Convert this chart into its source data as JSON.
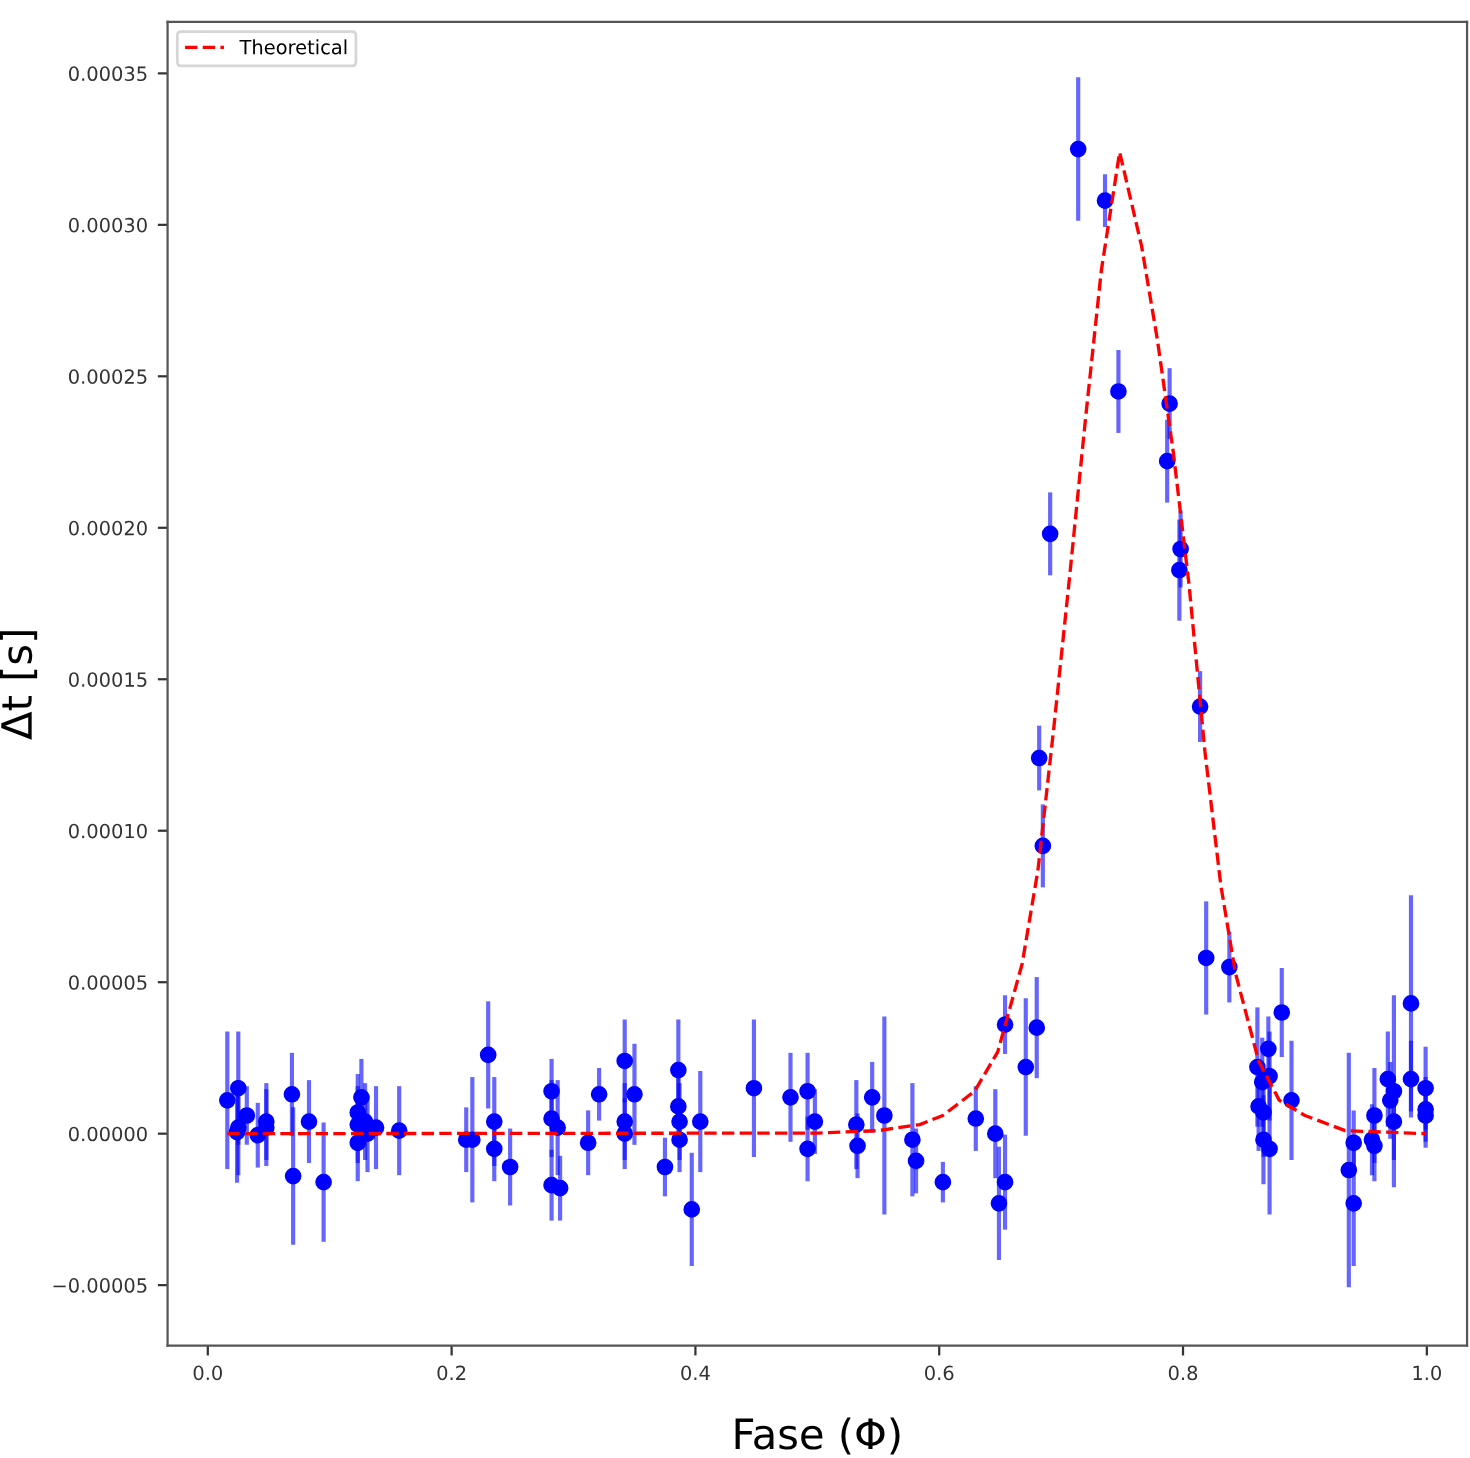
{
  "chart_data": {
    "type": "scatter",
    "xlabel": "Fase (Φ)",
    "ylabel": "Δt [s]",
    "xlim": [
      -0.033,
      1.033
    ],
    "ylim": [
      -7e-05,
      0.000367
    ],
    "xticks": [
      {
        "value": 0.0,
        "label": "0.0"
      },
      {
        "value": 0.2,
        "label": "0.2"
      },
      {
        "value": 0.4,
        "label": "0.4"
      },
      {
        "value": 0.6,
        "label": "0.6"
      },
      {
        "value": 0.8,
        "label": "0.8"
      },
      {
        "value": 1.0,
        "label": "1.0"
      }
    ],
    "yticks": [
      {
        "value": -5e-05,
        "label": "−0.00005"
      },
      {
        "value": 0,
        "label": "0.00000"
      },
      {
        "value": 5e-05,
        "label": "0.00005"
      },
      {
        "value": 0.0001,
        "label": "0.00010"
      },
      {
        "value": 0.00015,
        "label": "0.00015"
      },
      {
        "value": 0.0002,
        "label": "0.00020"
      },
      {
        "value": 0.00025,
        "label": "0.00025"
      },
      {
        "value": 0.0003,
        "label": "0.00030"
      },
      {
        "value": 0.00035,
        "label": "0.00035"
      }
    ],
    "legend": "top left",
    "series": [
      {
        "color": "#0000ff",
        "marker": "circle",
        "x": [
          0.016,
          0.024,
          0.025,
          0.025,
          0.032,
          0.041,
          0.048,
          0.048,
          0.069,
          0.07,
          0.083,
          0.095,
          0.123,
          0.123,
          0.123,
          0.126,
          0.129,
          0.131,
          0.138,
          0.157,
          0.212,
          0.217,
          0.23,
          0.235,
          0.235,
          0.248,
          0.282,
          0.282,
          0.282,
          0.287,
          0.289,
          0.312,
          0.321,
          0.342,
          0.342,
          0.342,
          0.35,
          0.375,
          0.386,
          0.386,
          0.387,
          0.387,
          0.397,
          0.404,
          0.448,
          0.478,
          0.492,
          0.492,
          0.498,
          0.532,
          0.533,
          0.545,
          0.555,
          0.578,
          0.581,
          0.603,
          0.63,
          0.646,
          0.649,
          0.654,
          0.654,
          0.671,
          0.68,
          0.682,
          0.685,
          0.691,
          0.714,
          0.736,
          0.747,
          0.787,
          0.789,
          0.797,
          0.798,
          0.814,
          0.819,
          0.838,
          0.861,
          0.862,
          0.865,
          0.866,
          0.866,
          0.87,
          0.871,
          0.871,
          0.881,
          0.889,
          0.936,
          0.94,
          0.94,
          0.955,
          0.957,
          0.957,
          0.968,
          0.97,
          0.973,
          0.973,
          0.987,
          0.987,
          0.999,
          0.999,
          0.999
        ],
        "values": [
          1.1e-05,
          5e-07,
          1.5e-05,
          2e-06,
          6e-06,
          -5e-07,
          4e-06,
          2e-06,
          1.3e-05,
          -1.4e-05,
          4e-06,
          -1.6e-05,
          7e-06,
          3e-06,
          -3e-06,
          1.2e-05,
          4e-06,
          0.0,
          2e-06,
          1e-06,
          -2e-06,
          -2e-06,
          2.6e-05,
          4e-06,
          -5e-06,
          -1.1e-05,
          1.4e-05,
          5e-06,
          -1.7e-05,
          2e-06,
          -1.8e-05,
          -3e-06,
          1.3e-05,
          2.4e-05,
          4e-06,
          0.0,
          1.3e-05,
          -1.1e-05,
          2.1e-05,
          9e-06,
          4e-06,
          -2e-06,
          -2.5e-05,
          4e-06,
          1.5e-05,
          1.2e-05,
          1.4e-05,
          -5e-06,
          4e-06,
          3e-06,
          -4e-06,
          1.2e-05,
          6e-06,
          -2e-06,
          -9e-06,
          -1.6e-05,
          5e-06,
          0.0,
          -2.3e-05,
          -1.6e-05,
          3.6e-05,
          2.2e-05,
          3.5e-05,
          0.000124,
          9.5e-05,
          0.000198,
          0.000325,
          0.000308,
          0.000245,
          0.000222,
          0.000241,
          0.000186,
          0.000193,
          0.000141,
          5.8e-05,
          5.5e-05,
          2.2e-05,
          9e-06,
          1.7e-05,
          7e-06,
          -2e-06,
          2.8e-05,
          1.9e-05,
          -5e-06,
          4e-05,
          1.1e-05,
          -1.2e-05,
          -2.3e-05,
          -3e-06,
          -2e-06,
          6e-06,
          -4e-06,
          1.8e-05,
          1.1e-05,
          1.4e-05,
          4e-06,
          4.3e-05,
          1.8e-05,
          1.5e-05,
          8e-06,
          6e-06
        ],
        "errors": [
          2.2e-05,
          1.6e-05,
          1.8e-05,
          1.5e-05,
          9e-06,
          1e-05,
          1.2e-05,
          1.2e-05,
          1.3e-05,
          2.2e-05,
          1.3e-05,
          1.9e-05,
          1.2e-05,
          1.2e-05,
          1.2e-05,
          1.2e-05,
          1.2e-05,
          1.2e-05,
          1.3e-05,
          1.4e-05,
          1e-05,
          2e-05,
          1.7e-05,
          1.4e-05,
          1e-05,
          1.2e-05,
          1e-05,
          1.2e-05,
          1.1e-05,
          1.5e-05,
          1e-05,
          1e-05,
          8e-06,
          1.3e-05,
          1.2e-05,
          1.1e-05,
          1.6e-05,
          9e-06,
          1.6e-05,
          1.2e-05,
          1.2e-05,
          1e-05,
          1.8e-05,
          1.6e-05,
          2.2e-05,
          1.4e-05,
          1.2e-05,
          1e-05,
          1e-05,
          1.4e-05,
          1e-05,
          1.1e-05,
          3.2e-05,
          1.8e-05,
          1e-05,
          6e-06,
          1e-05,
          1.4e-05,
          1.8e-05,
          1.5e-05,
          9e-06,
          2.2e-05,
          1.6e-05,
          1e-05,
          1.3e-05,
          1.3e-05,
          2.3e-05,
          8e-06,
          1.3e-05,
          1.3e-05,
          1.1e-05,
          1.6e-05,
          1.2e-05,
          1.1e-05,
          1.8e-05,
          1.1e-05,
          1.9e-05,
          1.4e-05,
          1.4e-05,
          1.4e-05,
          1.4e-05,
          1e-05,
          1.4e-05,
          2.1e-05,
          1.4e-05,
          1.9e-05,
          3.8e-05,
          2e-05,
          1e-05,
          1.1e-05,
          1.5e-05,
          1.1e-05,
          1.5e-05,
          1.2e-05,
          3.1e-05,
          1.2e-05,
          3.5e-05,
          1.2e-05,
          1.3e-05,
          1e-05,
          1e-05
        ]
      },
      {
        "type": "line",
        "name": "Theoretical",
        "color": "#ff0000",
        "line_style": "dashed",
        "marker": "none",
        "x": [
          0.016,
          0.5,
          0.55,
          0.584,
          0.603,
          0.629,
          0.648,
          0.668,
          0.681,
          0.694,
          0.707,
          0.72,
          0.733,
          0.748,
          0.766,
          0.779,
          0.792,
          0.805,
          0.818,
          0.831,
          0.843,
          0.862,
          0.879,
          0.9,
          0.933,
          0.999
        ],
        "values": [
          0.0,
          2e-07,
          1e-06,
          3e-06,
          6e-06,
          1.4e-05,
          2.7e-05,
          5.6e-05,
          8.7e-05,
          0.000134,
          0.000184,
          0.000236,
          0.000285,
          0.000324,
          0.000293,
          0.000262,
          0.000225,
          0.000181,
          0.000126,
          8.2e-05,
          5.3e-05,
          2.4e-05,
          1.1e-05,
          6e-06,
          1e-06,
          0.0
        ]
      }
    ]
  }
}
